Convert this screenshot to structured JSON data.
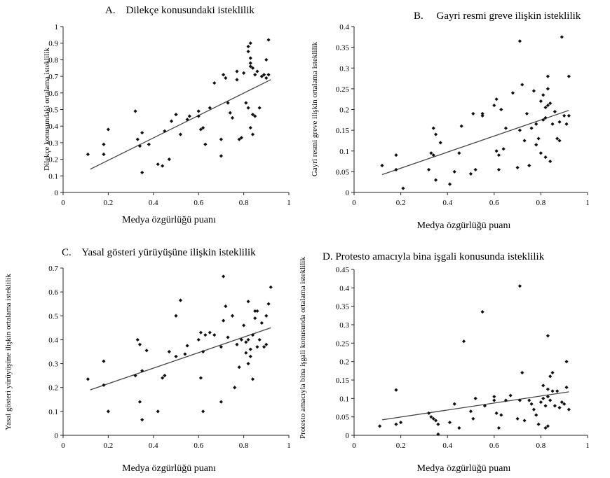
{
  "chart_data": [
    {
      "type": "scatter",
      "title": "A.    Dilekçe konusundaki isteklilik",
      "xlabel": "Medya özgürlüğü puanı",
      "ylabel": "Dilekçe konusundaki ortalama isteklilik",
      "xlim": [
        0,
        1
      ],
      "ylim": [
        0,
        1
      ],
      "xticks": [
        "0",
        "0.2",
        "0.4",
        "0.6",
        "0.8",
        "1"
      ],
      "yticks": [
        "0",
        "0.1",
        "0.2",
        "0.3",
        "0.4",
        "0.5",
        "0.6",
        "0.7",
        "0.8",
        "0.9",
        "1"
      ],
      "trend": [
        [
          0.12,
          0.14
        ],
        [
          0.92,
          0.68
        ]
      ],
      "points": [
        [
          0.11,
          0.23
        ],
        [
          0.18,
          0.23
        ],
        [
          0.18,
          0.29
        ],
        [
          0.2,
          0.38
        ],
        [
          0.32,
          0.49
        ],
        [
          0.33,
          0.32
        ],
        [
          0.34,
          0.28
        ],
        [
          0.35,
          0.36
        ],
        [
          0.35,
          0.12
        ],
        [
          0.38,
          0.29
        ],
        [
          0.42,
          0.17
        ],
        [
          0.44,
          0.16
        ],
        [
          0.45,
          0.37
        ],
        [
          0.47,
          0.2
        ],
        [
          0.48,
          0.43
        ],
        [
          0.5,
          0.47
        ],
        [
          0.52,
          0.35
        ],
        [
          0.55,
          0.44
        ],
        [
          0.56,
          0.46
        ],
        [
          0.6,
          0.46
        ],
        [
          0.6,
          0.49
        ],
        [
          0.61,
          0.38
        ],
        [
          0.62,
          0.39
        ],
        [
          0.63,
          0.29
        ],
        [
          0.65,
          0.51
        ],
        [
          0.67,
          0.66
        ],
        [
          0.7,
          0.32
        ],
        [
          0.7,
          0.22
        ],
        [
          0.71,
          0.71
        ],
        [
          0.72,
          0.69
        ],
        [
          0.73,
          0.54
        ],
        [
          0.74,
          0.48
        ],
        [
          0.75,
          0.45
        ],
        [
          0.77,
          0.73
        ],
        [
          0.77,
          0.68
        ],
        [
          0.78,
          0.32
        ],
        [
          0.79,
          0.33
        ],
        [
          0.8,
          0.72
        ],
        [
          0.81,
          0.54
        ],
        [
          0.82,
          0.51
        ],
        [
          0.82,
          0.88
        ],
        [
          0.82,
          0.85
        ],
        [
          0.83,
          0.81
        ],
        [
          0.83,
          0.9
        ],
        [
          0.83,
          0.78
        ],
        [
          0.83,
          0.76
        ],
        [
          0.84,
          0.75
        ],
        [
          0.85,
          0.71
        ],
        [
          0.84,
          0.35
        ],
        [
          0.83,
          0.39
        ],
        [
          0.84,
          0.47
        ],
        [
          0.85,
          0.46
        ],
        [
          0.86,
          0.73
        ],
        [
          0.87,
          0.51
        ],
        [
          0.88,
          0.7
        ],
        [
          0.89,
          0.71
        ],
        [
          0.9,
          0.69
        ],
        [
          0.9,
          0.8
        ],
        [
          0.91,
          0.71
        ],
        [
          0.91,
          0.92
        ]
      ]
    },
    {
      "type": "scatter",
      "title": "B.     Gayri resmi greve ilişkin isteklilik",
      "xlabel": "Medya özgürlüğü puanı",
      "ylabel": "Gayri resmi greve ilişkin ortalama isteklilik",
      "xlim": [
        0,
        1
      ],
      "ylim": [
        0,
        0.4
      ],
      "xticks": [
        "0",
        "0.2",
        "0.4",
        "0.6",
        "0.8",
        "1"
      ],
      "yticks": [
        "0",
        "0.05",
        "0.1",
        "0.15",
        "0.2",
        "0.25",
        "0.3",
        "0.35",
        "0.4"
      ],
      "trend": [
        [
          0.12,
          0.043
        ],
        [
          0.92,
          0.198
        ]
      ],
      "points": [
        [
          0.12,
          0.065
        ],
        [
          0.18,
          0.055
        ],
        [
          0.18,
          0.09
        ],
        [
          0.21,
          0.01
        ],
        [
          0.32,
          0.055
        ],
        [
          0.33,
          0.095
        ],
        [
          0.34,
          0.09
        ],
        [
          0.34,
          0.155
        ],
        [
          0.35,
          0.14
        ],
        [
          0.35,
          0.03
        ],
        [
          0.37,
          0.12
        ],
        [
          0.41,
          0.02
        ],
        [
          0.43,
          0.05
        ],
        [
          0.45,
          0.095
        ],
        [
          0.46,
          0.16
        ],
        [
          0.5,
          0.045
        ],
        [
          0.51,
          0.19
        ],
        [
          0.52,
          0.055
        ],
        [
          0.55,
          0.19
        ],
        [
          0.55,
          0.185
        ],
        [
          0.6,
          0.21
        ],
        [
          0.61,
          0.225
        ],
        [
          0.61,
          0.1
        ],
        [
          0.62,
          0.055
        ],
        [
          0.62,
          0.09
        ],
        [
          0.63,
          0.2
        ],
        [
          0.64,
          0.105
        ],
        [
          0.65,
          0.155
        ],
        [
          0.68,
          0.24
        ],
        [
          0.7,
          0.06
        ],
        [
          0.71,
          0.365
        ],
        [
          0.71,
          0.15
        ],
        [
          0.72,
          0.26
        ],
        [
          0.73,
          0.125
        ],
        [
          0.74,
          0.19
        ],
        [
          0.75,
          0.065
        ],
        [
          0.76,
          0.155
        ],
        [
          0.77,
          0.245
        ],
        [
          0.78,
          0.115
        ],
        [
          0.78,
          0.165
        ],
        [
          0.79,
          0.13
        ],
        [
          0.8,
          0.095
        ],
        [
          0.8,
          0.22
        ],
        [
          0.81,
          0.235
        ],
        [
          0.81,
          0.175
        ],
        [
          0.82,
          0.085
        ],
        [
          0.82,
          0.18
        ],
        [
          0.82,
          0.205
        ],
        [
          0.83,
          0.28
        ],
        [
          0.83,
          0.25
        ],
        [
          0.83,
          0.21
        ],
        [
          0.84,
          0.075
        ],
        [
          0.84,
          0.215
        ],
        [
          0.85,
          0.165
        ],
        [
          0.86,
          0.195
        ],
        [
          0.87,
          0.13
        ],
        [
          0.88,
          0.17
        ],
        [
          0.88,
          0.125
        ],
        [
          0.89,
          0.375
        ],
        [
          0.9,
          0.185
        ],
        [
          0.91,
          0.165
        ],
        [
          0.92,
          0.28
        ],
        [
          0.92,
          0.185
        ]
      ]
    },
    {
      "type": "scatter",
      "title": "C.    Yasal gösteri yürüyüşüne ilişkin isteklilik",
      "xlabel": "Medya özgürlüğü puanı",
      "ylabel": "Yasal gösteri yürüyüşüne ilişkin ortalama isteklilik",
      "xlim": [
        0,
        1
      ],
      "ylim": [
        0,
        0.7
      ],
      "xticks": [
        "0",
        "0.2",
        "0.4",
        "0.6",
        "0.8",
        "1"
      ],
      "yticks": [
        "0",
        "0.1",
        "0.2",
        "0.3",
        "0.4",
        "0.5",
        "0.6",
        "0.7"
      ],
      "trend": [
        [
          0.12,
          0.19
        ],
        [
          0.92,
          0.45
        ]
      ],
      "points": [
        [
          0.11,
          0.235
        ],
        [
          0.18,
          0.21
        ],
        [
          0.18,
          0.31
        ],
        [
          0.2,
          0.1
        ],
        [
          0.32,
          0.25
        ],
        [
          0.33,
          0.4
        ],
        [
          0.34,
          0.38
        ],
        [
          0.34,
          0.14
        ],
        [
          0.35,
          0.065
        ],
        [
          0.35,
          0.27
        ],
        [
          0.37,
          0.355
        ],
        [
          0.42,
          0.1
        ],
        [
          0.44,
          0.24
        ],
        [
          0.45,
          0.25
        ],
        [
          0.47,
          0.35
        ],
        [
          0.5,
          0.5
        ],
        [
          0.5,
          0.33
        ],
        [
          0.52,
          0.565
        ],
        [
          0.54,
          0.34
        ],
        [
          0.55,
          0.375
        ],
        [
          0.6,
          0.4
        ],
        [
          0.61,
          0.43
        ],
        [
          0.61,
          0.24
        ],
        [
          0.62,
          0.1
        ],
        [
          0.62,
          0.35
        ],
        [
          0.63,
          0.42
        ],
        [
          0.65,
          0.43
        ],
        [
          0.67,
          0.42
        ],
        [
          0.7,
          0.14
        ],
        [
          0.7,
          0.37
        ],
        [
          0.71,
          0.48
        ],
        [
          0.71,
          0.665
        ],
        [
          0.72,
          0.54
        ],
        [
          0.73,
          0.41
        ],
        [
          0.75,
          0.5
        ],
        [
          0.76,
          0.2
        ],
        [
          0.77,
          0.38
        ],
        [
          0.78,
          0.285
        ],
        [
          0.79,
          0.4
        ],
        [
          0.8,
          0.46
        ],
        [
          0.81,
          0.39
        ],
        [
          0.81,
          0.345
        ],
        [
          0.82,
          0.3
        ],
        [
          0.82,
          0.4
        ],
        [
          0.82,
          0.56
        ],
        [
          0.83,
          0.36
        ],
        [
          0.83,
          0.33
        ],
        [
          0.84,
          0.235
        ],
        [
          0.84,
          0.42
        ],
        [
          0.85,
          0.49
        ],
        [
          0.85,
          0.52
        ],
        [
          0.86,
          0.37
        ],
        [
          0.86,
          0.52
        ],
        [
          0.87,
          0.4
        ],
        [
          0.88,
          0.47
        ],
        [
          0.89,
          0.37
        ],
        [
          0.9,
          0.38
        ],
        [
          0.9,
          0.5
        ],
        [
          0.91,
          0.55
        ],
        [
          0.92,
          0.62
        ]
      ]
    },
    {
      "type": "scatter",
      "title": "D. Protesto amacıyla bina işgali konusunda isteklilik",
      "xlabel": "Medya özgürlüğü puanı",
      "ylabel": "Protesto amacıyla bina işgali konusunda ortalama isteklilik",
      "xlim": [
        0,
        1
      ],
      "ylim": [
        0,
        0.45
      ],
      "xticks": [
        "0",
        "0.2",
        "0.4",
        "0.6",
        "0.8",
        "1"
      ],
      "yticks": [
        "0",
        "0.05",
        "0.1",
        "0.15",
        "0.2",
        "0.25",
        "0.3",
        "0.35",
        "0.4",
        "0.45"
      ],
      "trend": [
        [
          0.12,
          0.042
        ],
        [
          0.92,
          0.118
        ]
      ],
      "points": [
        [
          0.11,
          0.025
        ],
        [
          0.18,
          0.123
        ],
        [
          0.18,
          0.03
        ],
        [
          0.2,
          0.035
        ],
        [
          0.32,
          0.06
        ],
        [
          0.33,
          0.05
        ],
        [
          0.34,
          0.045
        ],
        [
          0.35,
          0.04
        ],
        [
          0.36,
          0.03
        ],
        [
          0.36,
          0.003
        ],
        [
          0.41,
          0.035
        ],
        [
          0.43,
          0.085
        ],
        [
          0.45,
          0.02
        ],
        [
          0.47,
          0.255
        ],
        [
          0.5,
          0.065
        ],
        [
          0.51,
          0.045
        ],
        [
          0.52,
          0.1
        ],
        [
          0.55,
          0.335
        ],
        [
          0.56,
          0.08
        ],
        [
          0.6,
          0.095
        ],
        [
          0.6,
          0.105
        ],
        [
          0.61,
          0.06
        ],
        [
          0.62,
          0.02
        ],
        [
          0.63,
          0.055
        ],
        [
          0.65,
          0.095
        ],
        [
          0.67,
          0.108
        ],
        [
          0.7,
          0.045
        ],
        [
          0.71,
          0.095
        ],
        [
          0.71,
          0.405
        ],
        [
          0.72,
          0.17
        ],
        [
          0.73,
          0.04
        ],
        [
          0.75,
          0.095
        ],
        [
          0.76,
          0.085
        ],
        [
          0.77,
          0.07
        ],
        [
          0.78,
          0.055
        ],
        [
          0.79,
          0.03
        ],
        [
          0.8,
          0.09
        ],
        [
          0.81,
          0.135
        ],
        [
          0.81,
          0.1
        ],
        [
          0.82,
          0.08
        ],
        [
          0.82,
          0.02
        ],
        [
          0.83,
          0.025
        ],
        [
          0.83,
          0.125
        ],
        [
          0.83,
          0.105
        ],
        [
          0.83,
          0.27
        ],
        [
          0.84,
          0.095
        ],
        [
          0.84,
          0.16
        ],
        [
          0.85,
          0.17
        ],
        [
          0.85,
          0.12
        ],
        [
          0.86,
          0.08
        ],
        [
          0.87,
          0.12
        ],
        [
          0.88,
          0.075
        ],
        [
          0.89,
          0.09
        ],
        [
          0.9,
          0.085
        ],
        [
          0.91,
          0.2
        ],
        [
          0.91,
          0.13
        ],
        [
          0.92,
          0.07
        ]
      ]
    }
  ]
}
